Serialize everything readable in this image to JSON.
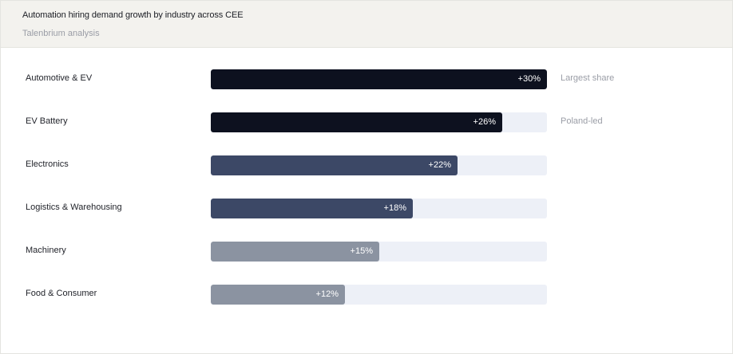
{
  "header": {
    "title": "Automation hiring demand growth by industry across CEE",
    "subtitle": "Talenbrium analysis"
  },
  "colors": {
    "dark": "#0d111f",
    "mid": "#3c4866",
    "light": "#8b93a1",
    "track": "#edf0f7"
  },
  "chart_data": {
    "type": "bar",
    "orientation": "horizontal",
    "title": "Automation hiring demand growth by industry across CEE",
    "subtitle": "Talenbrium analysis",
    "xlim": [
      0,
      30
    ],
    "grid": false,
    "categories": [
      "Automotive & EV",
      "EV Battery",
      "Electronics",
      "Logistics & Warehousing",
      "Machinery",
      "Food & Consumer"
    ],
    "values": [
      30,
      26,
      22,
      18,
      15,
      12
    ],
    "value_labels": [
      "+30%",
      "+26%",
      "+22%",
      "+18%",
      "+15%",
      "+12%"
    ],
    "annotations": [
      "Largest share",
      "Poland-led",
      "",
      "",
      "",
      ""
    ],
    "bar_colors": [
      "#0d111f",
      "#0d111f",
      "#3c4866",
      "#3c4866",
      "#8b93a1",
      "#8b93a1"
    ]
  }
}
